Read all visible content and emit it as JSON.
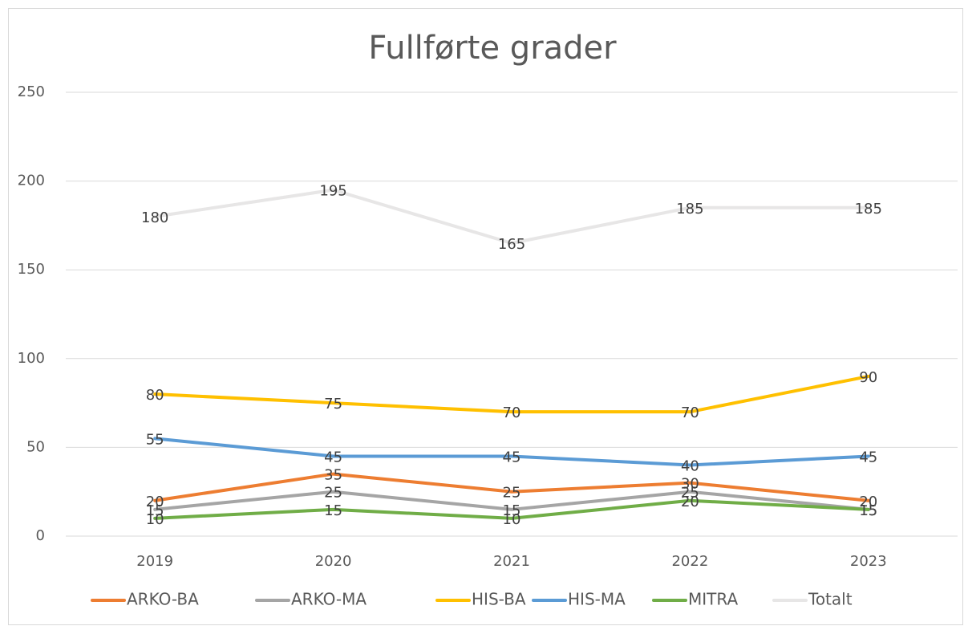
{
  "chart_data": {
    "type": "line",
    "title": "Fullførte grader",
    "categories": [
      "2019",
      "2020",
      "2021",
      "2022",
      "2023"
    ],
    "series": [
      {
        "name": "ARKO-BA",
        "color": "#ED7D31",
        "values": [
          20,
          35,
          25,
          30,
          20
        ]
      },
      {
        "name": "ARKO-MA",
        "color": "#A5A5A5",
        "values": [
          15,
          25,
          15,
          25,
          15
        ]
      },
      {
        "name": "HIS-BA",
        "color": "#FFC000",
        "values": [
          80,
          75,
          70,
          70,
          90
        ]
      },
      {
        "name": "HIS-MA",
        "color": "#5B9BD5",
        "values": [
          55,
          45,
          45,
          40,
          45
        ]
      },
      {
        "name": "MITRA",
        "color": "#70AD47",
        "values": [
          10,
          15,
          10,
          20,
          15
        ]
      },
      {
        "name": "Totalt",
        "color": "#E7E6E6",
        "values": [
          180,
          195,
          165,
          185,
          185
        ]
      }
    ],
    "ylim": [
      0,
      250
    ],
    "yticks": [
      0,
      50,
      100,
      150,
      200,
      250
    ],
    "grid": true,
    "legend": "bottom"
  }
}
